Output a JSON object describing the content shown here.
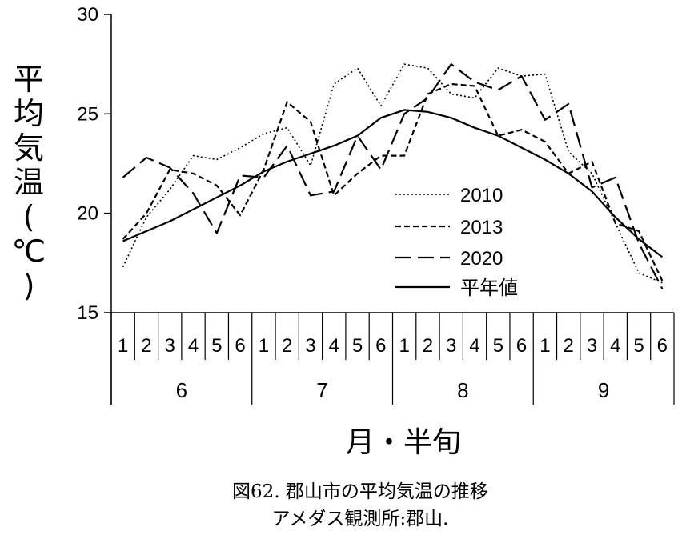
{
  "chart_data": {
    "type": "line",
    "ylabel": "平均気温(℃)",
    "xlabel": "月・半旬",
    "ylim": [
      15,
      30
    ],
    "yticks": [
      "30",
      "25",
      "20",
      "15"
    ],
    "subcategories": [
      "1",
      "2",
      "3",
      "4",
      "5",
      "6",
      "1",
      "2",
      "3",
      "4",
      "5",
      "6",
      "1",
      "2",
      "3",
      "4",
      "5",
      "6",
      "1",
      "2",
      "3",
      "4",
      "5",
      "6"
    ],
    "months": [
      "6",
      "7",
      "8",
      "9"
    ],
    "caption_line1": "図62. 郡山市の平均気温の推移",
    "caption_line2": "アメダス観測所:郡山.",
    "legend_position": "center-right",
    "grid": false,
    "series": [
      {
        "name": "2010",
        "style": "dotted",
        "values": [
          17.3,
          19.8,
          21.2,
          22.9,
          22.7,
          23.3,
          24.0,
          24.3,
          22.4,
          26.5,
          27.3,
          25.4,
          27.5,
          27.3,
          26.0,
          25.8,
          27.3,
          26.9,
          27.0,
          23.1,
          22.0,
          19.5,
          17.0,
          16.5
        ]
      },
      {
        "name": "2013",
        "style": "short-dash",
        "values": [
          18.7,
          20.0,
          22.2,
          22.0,
          21.4,
          19.9,
          22.2,
          25.6,
          24.6,
          20.9,
          22.0,
          22.9,
          22.9,
          26.0,
          26.5,
          26.4,
          23.9,
          24.2,
          23.6,
          22.0,
          22.6,
          19.5,
          19.1,
          16.6
        ]
      },
      {
        "name": "2020",
        "style": "long-dash",
        "values": [
          21.8,
          22.8,
          22.3,
          21.0,
          19.0,
          21.9,
          21.8,
          23.4,
          20.9,
          21.1,
          23.9,
          22.2,
          25.0,
          25.8,
          27.5,
          26.6,
          26.2,
          26.9,
          24.7,
          25.5,
          21.3,
          21.8,
          18.5,
          16.2
        ]
      },
      {
        "name": "平年値",
        "style": "solid",
        "values": [
          18.6,
          19.1,
          19.6,
          20.2,
          20.8,
          21.4,
          22.1,
          22.6,
          23.0,
          23.4,
          23.9,
          24.8,
          25.2,
          25.1,
          24.8,
          24.3,
          23.9,
          23.3,
          22.7,
          22.0,
          21.1,
          19.8,
          18.7,
          17.8
        ]
      }
    ]
  }
}
